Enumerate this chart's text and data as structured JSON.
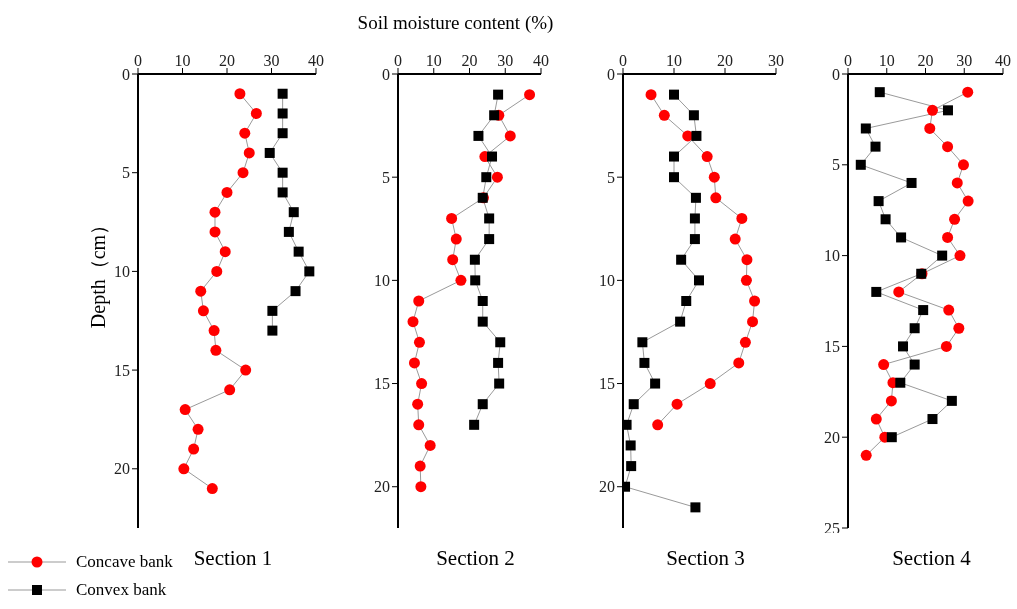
{
  "chart_data": [
    {
      "type": "line",
      "title": "Section 1",
      "ylabel": "Depth（cm）",
      "legend": "bottom left",
      "xlim": [
        0,
        40
      ],
      "xticks": [
        0,
        10,
        20,
        30,
        40
      ],
      "ylim": [
        23,
        0
      ],
      "yticks": [
        0,
        5,
        10,
        15,
        20
      ],
      "series": [
        {
          "name": "Concave bank",
          "color": "#ff0000",
          "marker": "circle",
          "x": [
            22.9,
            26.6,
            24,
            25,
            23.6,
            20,
            17.3,
            17.3,
            19.6,
            17.7,
            14.1,
            14.7,
            17.1,
            17.5,
            24.2,
            20.6,
            10.6,
            13.5,
            12.5,
            10.3,
            16.7
          ],
          "values": [
            1,
            2,
            3,
            4,
            5,
            6,
            7,
            8,
            9,
            10,
            11,
            12,
            13,
            14,
            15,
            16,
            17,
            18,
            19,
            20,
            21
          ]
        },
        {
          "name": "Convex bank",
          "color": "#000000",
          "marker": "square",
          "x": [
            32.5,
            32.5,
            32.5,
            29.6,
            32.5,
            32.5,
            35,
            33.9,
            36.1,
            38.5,
            35.4,
            30.2,
            30.2
          ],
          "values": [
            1,
            2,
            3,
            4,
            5,
            6,
            7,
            8,
            9,
            10,
            11,
            12,
            13
          ]
        }
      ]
    },
    {
      "type": "line",
      "title": "Section 2",
      "xlabel": "Soil moisture content (%)",
      "xlim": [
        0,
        40
      ],
      "xticks": [
        0,
        10,
        20,
        30,
        40
      ],
      "ylim": [
        22,
        0
      ],
      "yticks": [
        0,
        5,
        10,
        15,
        20
      ],
      "series": [
        {
          "color": "#ff0000",
          "marker": "circle",
          "x": [
            36.8,
            28.2,
            31.4,
            24.3,
            27.8,
            23.9,
            15,
            16.3,
            15.3,
            17.6,
            5.8,
            4.2,
            6,
            4.6,
            6.6,
            5.5,
            5.8,
            9,
            6.2,
            6.4
          ],
          "values": [
            1,
            2,
            3,
            4,
            5,
            6,
            7,
            8,
            9,
            10,
            11,
            12,
            13,
            14,
            15,
            16,
            17,
            18,
            19,
            20
          ]
        },
        {
          "color": "#000000",
          "marker": "square",
          "x": [
            28,
            26.9,
            22.5,
            26.3,
            24.7,
            23.7,
            25.5,
            25.5,
            21.5,
            21.6,
            23.7,
            23.7,
            28.6,
            28,
            28.3,
            23.7,
            21.3
          ],
          "values": [
            1,
            2,
            3,
            4,
            5,
            6,
            7,
            8,
            9,
            10,
            11,
            12,
            13,
            14,
            15,
            16,
            17
          ]
        }
      ]
    },
    {
      "type": "line",
      "title": "Section 3",
      "xlim": [
        0,
        30
      ],
      "xticks": [
        0,
        10,
        20,
        30
      ],
      "ylim": [
        22,
        0
      ],
      "yticks": [
        0,
        5,
        10,
        15,
        20
      ],
      "series": [
        {
          "color": "#ff0000",
          "marker": "circle",
          "x": [
            5.5,
            8.1,
            12.7,
            16.5,
            17.9,
            18.2,
            23.3,
            22,
            24.3,
            24.2,
            25.8,
            25.4,
            24,
            22.7,
            17.1,
            10.6,
            6.8
          ],
          "values": [
            1,
            2,
            3,
            4,
            5,
            6,
            7,
            8,
            9,
            10,
            11,
            12,
            13,
            14,
            15,
            16,
            17
          ]
        },
        {
          "color": "#000000",
          "marker": "square",
          "x": [
            10,
            13.9,
            14.4,
            10,
            10,
            14.3,
            14.1,
            14.1,
            11.4,
            14.9,
            12.4,
            11.2,
            3.8,
            4.2,
            6.3,
            2.1,
            0.7,
            1.5,
            1.6,
            0.4,
            14.2
          ],
          "values": [
            1,
            2,
            3,
            4,
            5,
            6,
            7,
            8,
            9,
            10,
            11,
            12,
            13,
            14,
            15,
            16,
            17,
            18,
            19,
            20,
            21
          ]
        }
      ]
    },
    {
      "type": "line",
      "title": "Section 4",
      "xlim": [
        0,
        40
      ],
      "xticks": [
        0,
        10,
        20,
        30,
        40
      ],
      "ylim": [
        25,
        0
      ],
      "yticks": [
        0,
        5,
        10,
        15,
        20,
        25
      ],
      "series": [
        {
          "color": "#ff0000",
          "marker": "circle",
          "x": [
            30.9,
            21.8,
            21.1,
            25.7,
            29.8,
            28.2,
            31,
            27.5,
            25.7,
            28.9,
            19.1,
            13.1,
            26,
            28.6,
            25.4,
            9.2,
            11.6,
            11.2,
            7.3,
            9.5,
            4.7
          ],
          "values": [
            1,
            2,
            3,
            4,
            5,
            6,
            7,
            8,
            9,
            10,
            11,
            12,
            13,
            14,
            15,
            16,
            17,
            18,
            19,
            20,
            21
          ]
        },
        {
          "color": "#000000",
          "marker": "square",
          "x": [
            8.2,
            25.8,
            4.6,
            7.1,
            3.3,
            16.4,
            7.9,
            9.7,
            13.7,
            24.3,
            18.9,
            7.3,
            19.4,
            17.2,
            14.2,
            17.2,
            13.5,
            26.8,
            21.8,
            11.3
          ],
          "values": [
            1,
            2,
            3,
            4,
            5,
            6,
            7,
            8,
            9,
            10,
            11,
            12,
            13,
            14,
            15,
            16,
            17,
            18,
            19,
            20
          ]
        }
      ]
    }
  ]
}
